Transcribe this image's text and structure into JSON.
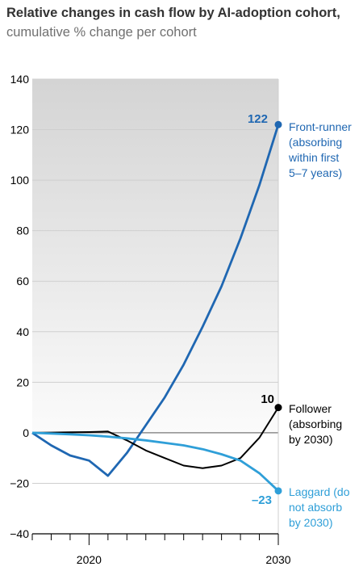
{
  "title": "Relative changes in cash flow by AI-adoption cohort,",
  "subtitle": "cumulative % change per cohort",
  "chart_data": {
    "type": "line",
    "title": "Relative changes in cash flow by AI-adoption cohort",
    "subtitle": "cumulative % change per cohort",
    "xlim": [
      2017,
      2030
    ],
    "ylim": [
      -40,
      140
    ],
    "x_ticks": [
      2020,
      2030
    ],
    "y_ticks": [
      -40,
      -20,
      0,
      20,
      40,
      60,
      80,
      100,
      120,
      140
    ],
    "grid": true,
    "shaded_region": "above 0",
    "series": [
      {
        "name": "Front-runner (absorbing within first 5–7 years)",
        "label_lines": [
          "Front-runner",
          "(absorbing",
          "within first",
          "5–7 years)"
        ],
        "end_label": "122",
        "color": "#1f67b2",
        "x": [
          2017,
          2018,
          2019,
          2020,
          2021,
          2022,
          2023,
          2024,
          2025,
          2026,
          2027,
          2028,
          2029,
          2030
        ],
        "y": [
          0,
          -5,
          -9,
          -11,
          -17,
          -8,
          3,
          14,
          27,
          42,
          58,
          77,
          98,
          122
        ]
      },
      {
        "name": "Follower (absorbing by 2030)",
        "label_lines": [
          "Follower",
          "(absorbing",
          "by 2030)"
        ],
        "end_label": "10",
        "color": "#000000",
        "x": [
          2017,
          2018,
          2019,
          2020,
          2021,
          2022,
          2023,
          2024,
          2025,
          2026,
          2027,
          2028,
          2029,
          2030
        ],
        "y": [
          0,
          0.1,
          0.2,
          0.3,
          0.5,
          -3,
          -7,
          -10,
          -13,
          -14,
          -13,
          -10,
          -2,
          10
        ]
      },
      {
        "name": "Laggard (do not absorb by 2030)",
        "label_lines": [
          "Laggard (do",
          "not absorb",
          "by 2030)"
        ],
        "end_label": "–23",
        "color": "#2f9fd8",
        "x": [
          2017,
          2018,
          2019,
          2020,
          2021,
          2022,
          2023,
          2024,
          2025,
          2026,
          2027,
          2028,
          2029,
          2030
        ],
        "y": [
          0,
          -0.3,
          -0.6,
          -1,
          -1.5,
          -2.2,
          -3,
          -4,
          -5,
          -6.5,
          -8.5,
          -11,
          -16,
          -23
        ]
      }
    ]
  }
}
